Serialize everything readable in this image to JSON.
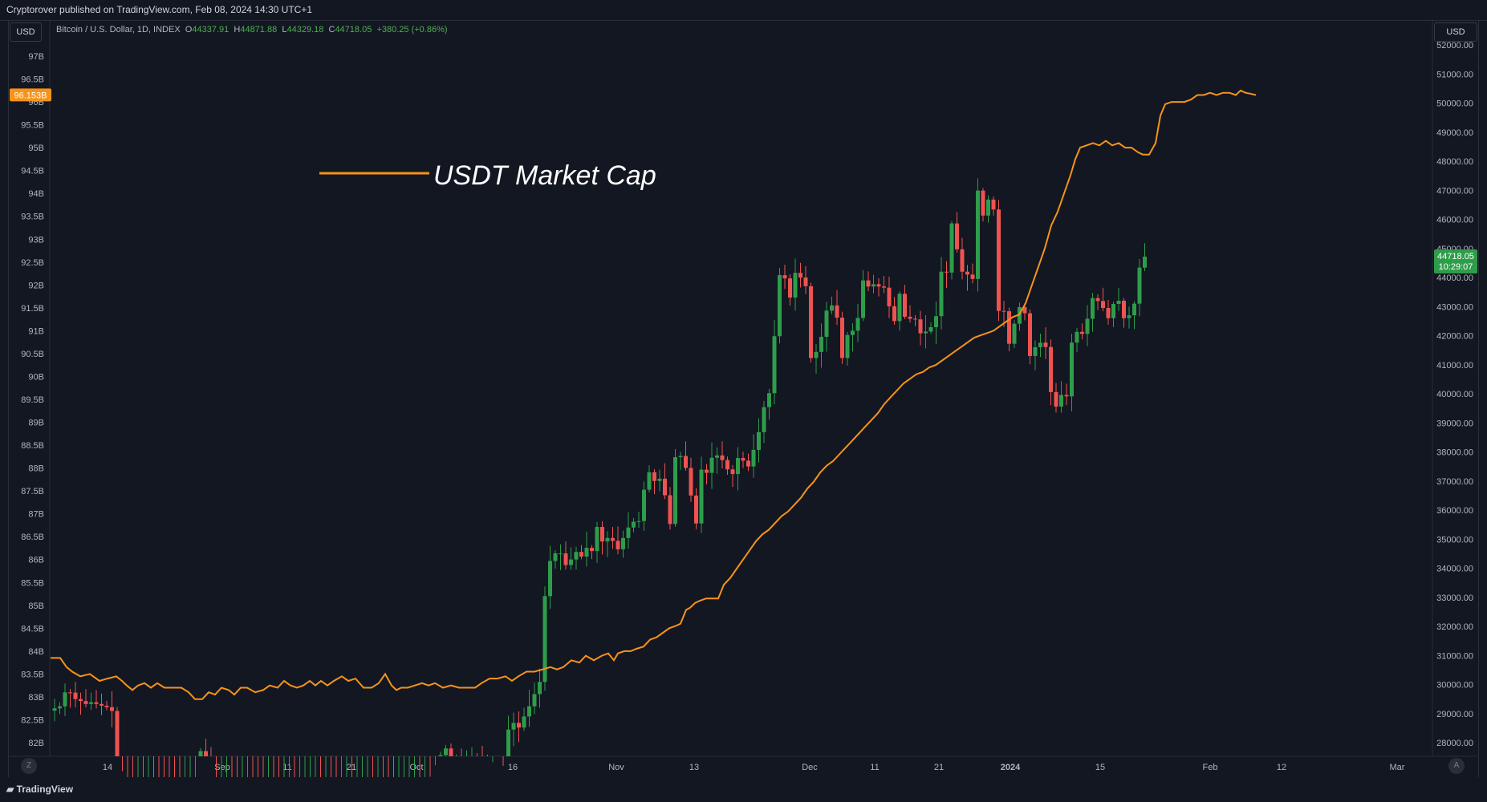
{
  "header": {
    "publisher": "Cryptorover published on TradingView.com, Feb 08, 2024 14:30 UTC+1"
  },
  "toolbar": {
    "left_currency": "USD",
    "right_currency": "USD"
  },
  "legend": {
    "symbol": "Bitcoin / U.S. Dollar, 1D, INDEX",
    "o_label": "O",
    "o_value": "44337.91",
    "h_label": "H",
    "h_value": "44871.88",
    "l_label": "L",
    "l_value": "44329.18",
    "c_label": "C",
    "c_value": "44718.05",
    "change": "+380.25 (+0.86%)"
  },
  "annotation": {
    "text": "USDT Market Cap",
    "color": "#f7931a"
  },
  "footer": {
    "brand": "TradingView",
    "left_button": "Z",
    "right_button": "A"
  },
  "chart_data": {
    "type": "candlestick+line",
    "colors": {
      "up": "#26a69a",
      "up_fill": "#2e9d4a",
      "down": "#ef5350",
      "line": "#f7931a",
      "background": "#131722"
    },
    "x_axis_labels": [
      "14",
      "Sep",
      "11",
      "21",
      "Oct",
      "16",
      "Nov",
      "13",
      "Dec",
      "11",
      "21",
      "2024",
      "15",
      "Feb",
      "12",
      "Mar"
    ],
    "left_axis": {
      "ticks": [
        "97B",
        "96.5B",
        "96B",
        "95.5B",
        "95B",
        "94.5B",
        "94B",
        "93.5B",
        "93B",
        "92.5B",
        "92B",
        "91.5B",
        "91B",
        "90.5B",
        "90B",
        "89.5B",
        "89B",
        "88.5B",
        "88B",
        "87.5B",
        "87B",
        "86.5B",
        "86B",
        "85.5B",
        "85B",
        "84.5B",
        "84B",
        "83.5B",
        "83B",
        "82.5B",
        "82B"
      ],
      "ylim": [
        81.8,
        97.2
      ],
      "last_value_label": "96.153B"
    },
    "right_axis": {
      "ticks": [
        "52000.00",
        "51000.00",
        "50000.00",
        "49000.00",
        "48000.00",
        "47000.00",
        "46000.00",
        "45000.00",
        "44000.00",
        "43000.00",
        "42000.00",
        "41000.00",
        "40000.00",
        "39000.00",
        "38000.00",
        "37000.00",
        "36000.00",
        "35000.00",
        "34000.00",
        "33000.00",
        "32000.00",
        "31000.00",
        "30000.00",
        "29000.00",
        "28000.00"
      ],
      "ylim": [
        27500,
        52300
      ],
      "last_price": "44718.05",
      "countdown": "10:29:07"
    },
    "btc_close": [
      29180,
      29250,
      29730,
      29720,
      29500,
      29430,
      29330,
      29390,
      29330,
      29270,
      29220,
      29090,
      26460,
      26100,
      26050,
      26000,
      26170,
      26100,
      26130,
      26060,
      26010,
      25990,
      25960,
      25840,
      25820,
      25950,
      26050,
      26090,
      27710,
      27290,
      25920,
      25840,
      25900,
      25900,
      25860,
      25820,
      25840,
      25980,
      25830,
      25790,
      25780,
      25810,
      25790,
      25750,
      25850,
      25880,
      25840,
      25850,
      25960,
      26080,
      26240,
      26160,
      26200,
      26170,
      26130,
      26180,
      26200,
      26120,
      26210,
      26280,
      26330,
      26270,
      26390,
      26220,
      26200,
      26060,
      26160,
      26350,
      26410,
      26430,
      26320,
      26390,
      26330,
      27010,
      27570,
      27800,
      27420,
      27500,
      27370,
      27390,
      27500,
      27480,
      27050,
      26990,
      27020,
      26870,
      26760,
      28450,
      28680,
      28520,
      28900,
      29250,
      29670,
      30090,
      33040,
      34250,
      34510,
      34510,
      34110,
      34300,
      34560,
      34400,
      34700,
      34590,
      35420,
      34920,
      35040,
      34940,
      34650,
      35040,
      35400,
      35600,
      35620,
      36700,
      37300,
      37000,
      37080,
      36510,
      35520,
      37820,
      37860,
      37450,
      36500,
      35540,
      37390,
      37280,
      37800,
      37880,
      37720,
      37400,
      37240,
      37790,
      37700,
      37500,
      38070,
      38680,
      39540,
      40020,
      41980,
      44080,
      43970,
      43310,
      44160,
      44000,
      43700,
      41230,
      41440,
      41960,
      42860,
      43040,
      42620,
      41230,
      42020,
      42170,
      42610,
      43900,
      43690,
      43770,
      43690,
      43650,
      43010,
      42500,
      43440,
      42650,
      42580,
      42560,
      42080,
      42140,
      42290,
      42670,
      44200,
      44170,
      45860,
      44970,
      44200,
      44100,
      43950,
      46990,
      46130,
      46680,
      46340,
      42850,
      42840,
      41720,
      42410,
      42980,
      42770,
      41300,
      41600,
      41760,
      41610,
      40060,
      39560,
      39960,
      39910,
      41760,
      42130,
      42060,
      42580,
      43290,
      43190,
      42950,
      42600,
      43090,
      43200,
      42600,
      42700,
      43100,
      44340,
      44718
    ]
  }
}
